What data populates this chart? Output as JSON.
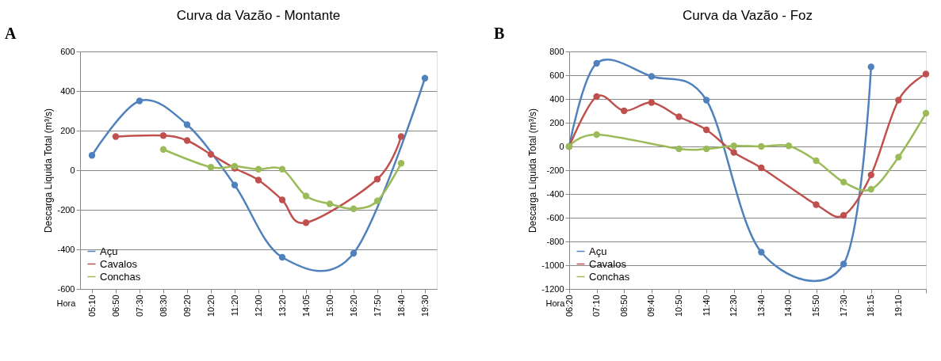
{
  "chart_data": [
    {
      "type": "line",
      "title": "Curva da Vazão - Montante",
      "annotations": [
        "A"
      ],
      "xlabel": "Hora",
      "ylabel": "Descarga Líquida Total (m³/s)",
      "categories": [
        "05:10",
        "06:50",
        "07:30",
        "08:30",
        "09:20",
        "10:20",
        "11:20",
        "12:00",
        "13:20",
        "14:05",
        "15:00",
        "16:20",
        "17:50",
        "18:40",
        "19:30"
      ],
      "series": [
        {
          "name": "Açu",
          "color": "#4f81bd",
          "values": [
            75,
            null,
            350,
            null,
            230,
            null,
            -75,
            null,
            -440,
            null,
            null,
            -420,
            null,
            null,
            465
          ]
        },
        {
          "name": "Cavalos",
          "color": "#c0504d",
          "values": [
            null,
            170,
            null,
            175,
            150,
            80,
            10,
            -50,
            -150,
            -265,
            null,
            null,
            -45,
            170,
            null
          ]
        },
        {
          "name": "Conchas",
          "color": "#9bbb59",
          "values": [
            null,
            null,
            null,
            105,
            null,
            15,
            20,
            5,
            5,
            -130,
            -170,
            -195,
            -155,
            35,
            null
          ]
        }
      ],
      "ylim": [
        -600,
        600
      ],
      "yticks": [
        -600,
        -400,
        -200,
        0,
        200,
        400,
        600
      ],
      "grid": "y",
      "legend": "bottom left",
      "marker": "circle",
      "line_style": "solid"
    },
    {
      "type": "line",
      "title": "Curva da Vazão - Foz",
      "annotations": [
        "B"
      ],
      "xlabel": "Hora",
      "ylabel": "Descarga Líquida Total (m³/s)",
      "categories": [
        "06:20",
        "07:10",
        "08:50",
        "09:40",
        "10:50",
        "11:40",
        "12:30",
        "13:40",
        "14:00",
        "15:50",
        "17:30",
        "18:15",
        "19:10",
        null
      ],
      "series": [
        {
          "name": "Açu",
          "color": "#4f81bd",
          "values": [
            0,
            700,
            null,
            590,
            null,
            390,
            null,
            -890,
            null,
            null,
            -990,
            670,
            null,
            null
          ]
        },
        {
          "name": "Cavalos",
          "color": "#c0504d",
          "values": [
            0,
            420,
            300,
            370,
            250,
            140,
            -50,
            -180,
            null,
            -490,
            -580,
            -240,
            390,
            610
          ]
        },
        {
          "name": "Conchas",
          "color": "#9bbb59",
          "values": [
            0,
            100,
            null,
            null,
            -20,
            -20,
            5,
            0,
            5,
            -120,
            -300,
            -360,
            -90,
            280
          ]
        }
      ],
      "ylim": [
        -1200,
        800
      ],
      "yticks": [
        -1200,
        -1000,
        -800,
        -600,
        -400,
        -200,
        0,
        200,
        400,
        600,
        800
      ],
      "grid": "y",
      "legend": "bottom left",
      "marker": "circle",
      "line_style": "solid"
    }
  ]
}
